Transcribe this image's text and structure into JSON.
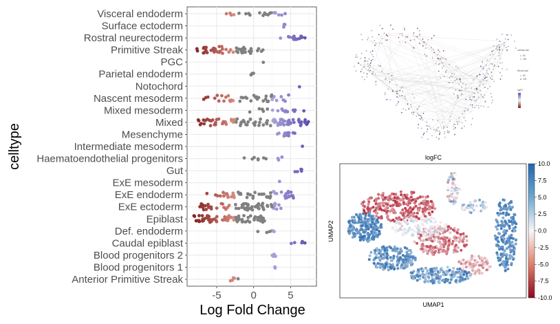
{
  "colors": {
    "low": "#7b1a1a",
    "mid_low": "#d98c80",
    "neutral": "#808080",
    "mid_high": "#a9a3d9",
    "high": "#5b4db0",
    "grid": "#ebebeb",
    "umap_neg": "#b2182b",
    "umap_zero": "#f7f7f7",
    "umap_pos": "#2166ac"
  },
  "chart_data": [
    {
      "type": "scatter",
      "subtype": "beeswarm",
      "xlabel": "Log Fold Change",
      "ylabel": "celltype",
      "xlim": [
        -9,
        8.5
      ],
      "xticks": [
        -5,
        0,
        5
      ],
      "xtick_labels": [
        "-5",
        "0",
        "5"
      ],
      "grid": true,
      "categories": [
        "Visceral endoderm",
        "Surface ectoderm",
        "Rostral neurectoderm",
        "Primitive Streak",
        "PGC",
        "Parietal endoderm",
        "Notochord",
        "Nascent mesoderm",
        "Mixed mesoderm",
        "Mixed",
        "Mesenchyme",
        "Intermediate mesoderm",
        "Haematoendothelial progenitors",
        "Gut",
        "ExE mesoderm",
        "ExE endoderm",
        "ExE ectoderm",
        "Epiblast",
        "Def. endoderm",
        "Caudal epiblast",
        "Blood progenitors 2",
        "Blood progenitors 1",
        "Anterior Primitive Streak"
      ],
      "series": [
        {
          "category": "Visceral endoderm",
          "lfc_range": [
            -5,
            4.5
          ],
          "count": 22
        },
        {
          "category": "Surface ectoderm",
          "lfc_range": [
            3.5,
            4.5
          ],
          "count": 3
        },
        {
          "category": "Rostral neurectoderm",
          "lfc_range": [
            3.5,
            7.7
          ],
          "count": 16
        },
        {
          "category": "Primitive Streak",
          "lfc_range": [
            -7.8,
            1.3
          ],
          "count": 48
        },
        {
          "category": "PGC",
          "lfc_range": [
            1.3,
            1.3
          ],
          "count": 1
        },
        {
          "category": "Parietal endoderm",
          "lfc_range": [
            -0.8,
            0
          ],
          "count": 5
        },
        {
          "category": "Notochord",
          "lfc_range": [
            6.2,
            6.2
          ],
          "count": 1
        },
        {
          "category": "Nascent mesoderm",
          "lfc_range": [
            -7.2,
            5
          ],
          "count": 40
        },
        {
          "category": "Mixed mesoderm",
          "lfc_range": [
            -1,
            7
          ],
          "count": 16
        },
        {
          "category": "Mixed",
          "lfc_range": [
            -7.8,
            7.5
          ],
          "count": 90
        },
        {
          "category": "Mesenchyme",
          "lfc_range": [
            3.2,
            5.7
          ],
          "count": 14
        },
        {
          "category": "Intermediate mesoderm",
          "lfc_range": [
            6.6,
            6.6
          ],
          "count": 1
        },
        {
          "category": "Haematoendothelial progenitors",
          "lfc_range": [
            -1.5,
            4.5
          ],
          "count": 10
        },
        {
          "category": "Gut",
          "lfc_range": [
            3.5,
            7
          ],
          "count": 5
        },
        {
          "category": "ExE mesoderm",
          "lfc_range": [
            3.5,
            3.5
          ],
          "count": 1
        },
        {
          "category": "ExE endoderm",
          "lfc_range": [
            -6.5,
            5.5
          ],
          "count": 60
        },
        {
          "category": "ExE ectoderm",
          "lfc_range": [
            -7.3,
            4
          ],
          "count": 66
        },
        {
          "category": "Epiblast",
          "lfc_range": [
            -8.3,
            1.5
          ],
          "count": 80
        },
        {
          "category": "Def. endoderm",
          "lfc_range": [
            0.3,
            3.6
          ],
          "count": 6
        },
        {
          "category": "Caudal epiblast",
          "lfc_range": [
            5,
            7.3
          ],
          "count": 5
        },
        {
          "category": "Blood progenitors 2",
          "lfc_range": [
            2.5,
            3
          ],
          "count": 4
        },
        {
          "category": "Blood progenitors 1",
          "lfc_range": [
            2.7,
            3
          ],
          "count": 4
        },
        {
          "category": "Anterior Primitive Streak",
          "lfc_range": [
            -3.5,
            -2
          ],
          "count": 5
        }
      ]
    },
    {
      "type": "scatter",
      "subtype": "network-graph",
      "legend_titles": [
        "overlap size",
        "Nhood size",
        "logFC"
      ],
      "legend_values": [
        "50",
        "100"
      ]
    },
    {
      "type": "scatter",
      "title": "logFC",
      "xlabel": "UMAP1",
      "ylabel": "UMAP2",
      "colorbar": {
        "range": [
          -10,
          10
        ],
        "ticks": [
          10,
          7.5,
          5,
          2.5,
          0,
          -2.5,
          -5,
          -7.5,
          -10
        ],
        "tick_labels": [
          "10.0",
          "7.5",
          "5.0",
          "2.5",
          "0.0",
          "-2.5",
          "-5.0",
          "-7.5",
          "-10.0"
        ]
      }
    }
  ]
}
